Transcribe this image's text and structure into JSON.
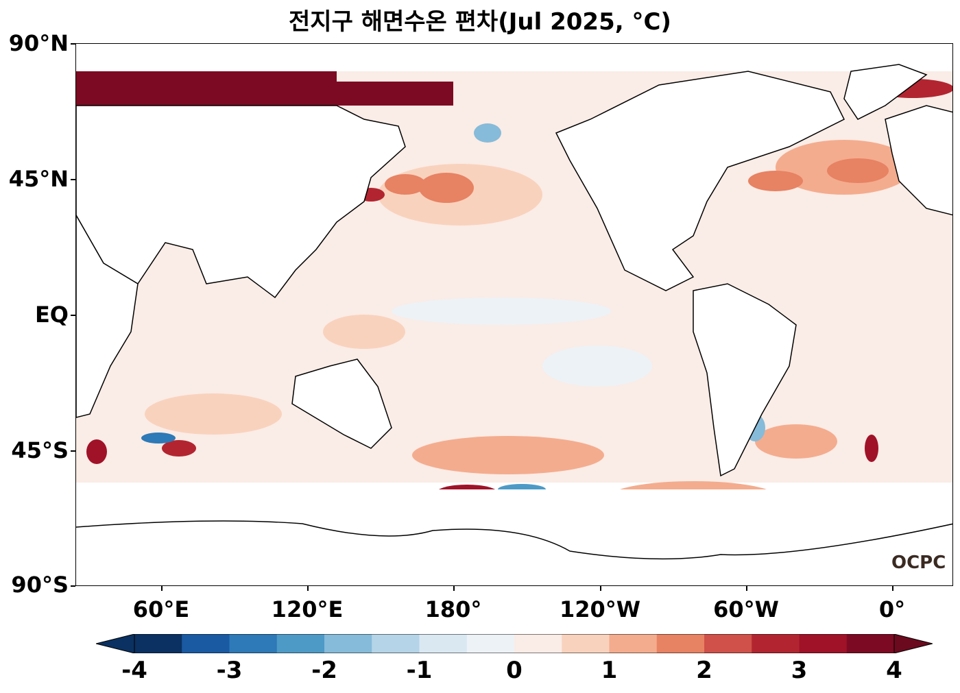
{
  "title": "전지구 해면수온 편차(Jul 2025, °C)",
  "logo": "OCPC",
  "lat_labels": [
    "90°N",
    "45°N",
    "EQ",
    "45°S",
    "90°S"
  ],
  "lon_labels": [
    "60°E",
    "120°E",
    "180°",
    "120°W",
    "60°W",
    "0°"
  ],
  "colorbar": {
    "tick_labels": [
      "-4",
      "-3",
      "-2",
      "-1",
      "0",
      "1",
      "2",
      "3",
      "4"
    ],
    "colors": [
      "#0a3161",
      "#1a5aa3",
      "#2e79b7",
      "#4e9ac7",
      "#86bbd9",
      "#b5d4e7",
      "#dae8f2",
      "#edf2f6",
      "#faece6",
      "#f9d2bd",
      "#f4ac8e",
      "#e78263",
      "#d05149",
      "#b22530",
      "#a01228",
      "#7c0a22"
    ],
    "extend_low": "#0a3161",
    "extend_high": "#6b0a1e"
  },
  "map": {
    "land_color": "#ffffff",
    "coastline_color": "#000000"
  }
}
